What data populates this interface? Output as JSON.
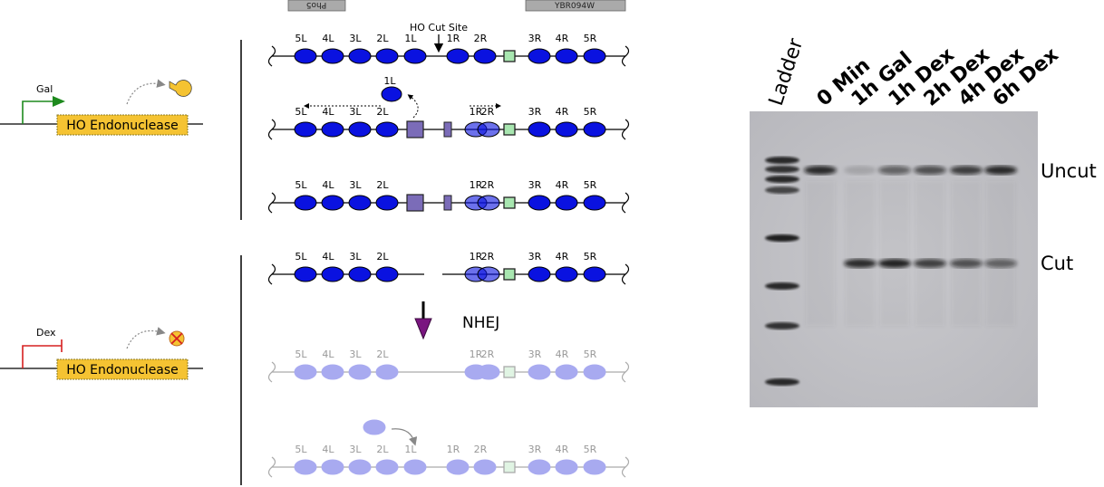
{
  "top_bars": {
    "left": "Pho5",
    "right": "YBR094W"
  },
  "cut_site_label": "HO Cut Site",
  "locus_labels": {
    "left": [
      "5L",
      "4L",
      "3L",
      "2L",
      "1L"
    ],
    "right": [
      "1R",
      "2R",
      "3R",
      "4R",
      "5R"
    ],
    "free_label": "1L"
  },
  "promoters": {
    "gal": {
      "label": "Gal",
      "gene": "HO Endonuclease",
      "arrow_color": "#1e8a1e"
    },
    "dex": {
      "label": "Dex",
      "gene": "HO Endonuclease",
      "arrow_color": "#d62020"
    }
  },
  "nhej_label": "NHEJ",
  "gel": {
    "lanes": [
      "Ladder",
      "0 Min",
      "1h Gal",
      "1h Dex",
      "2h Dex",
      "4h Dex",
      "6h Dex"
    ],
    "band_labels": {
      "uncut": "Uncut",
      "cut": "Cut"
    }
  },
  "colors": {
    "nucleosome": "#0a12e0",
    "nucleosome_faded": "#a8aaf0",
    "green_box": "#a8e6b0",
    "purple_box": "#7b6cb8",
    "gene_box": "#f5c332",
    "pacman": "#f5c332"
  }
}
